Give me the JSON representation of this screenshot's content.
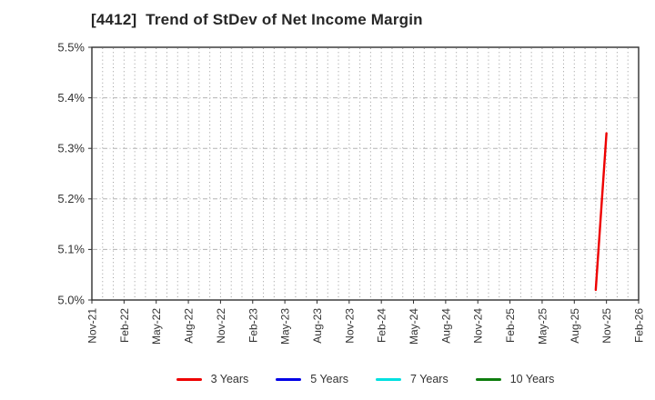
{
  "chart_data": {
    "type": "line",
    "title": "[4412]  Trend of StDev of Net Income Margin",
    "xlabel": "",
    "ylabel": "",
    "ylim": [
      5.0,
      5.5
    ],
    "ytick_labels": [
      "5.0%",
      "5.1%",
      "5.2%",
      "5.3%",
      "5.4%",
      "5.5%"
    ],
    "ytick_values": [
      5.0,
      5.1,
      5.2,
      5.3,
      5.4,
      5.5
    ],
    "grid_y_values": [
      5.1,
      5.2,
      5.3,
      5.4
    ],
    "x_tick_labels": [
      "Nov-21",
      "Feb-22",
      "May-22",
      "Aug-22",
      "Nov-22",
      "Feb-23",
      "May-23",
      "Aug-23",
      "Nov-23",
      "Feb-24",
      "May-24",
      "Aug-24",
      "Nov-24",
      "Feb-25",
      "May-25",
      "Aug-25",
      "Nov-25",
      "Feb-26"
    ],
    "x_tick_interval_months": 3,
    "grid": {
      "horizontal_style": "dash-dot",
      "vertical_style": "dotted",
      "vertical_interval": "monthly"
    },
    "legend_position": "bottom-center",
    "series": [
      {
        "name": "3 Years",
        "color": "#ee0000",
        "points": [
          {
            "x": "Oct-25",
            "y": 5.02
          },
          {
            "x": "Nov-25",
            "y": 5.33
          }
        ]
      },
      {
        "name": "5 Years",
        "color": "#0000e6",
        "points": []
      },
      {
        "name": "7 Years",
        "color": "#00e0e0",
        "points": []
      },
      {
        "name": "10 Years",
        "color": "#0e7d0e",
        "points": []
      }
    ]
  }
}
